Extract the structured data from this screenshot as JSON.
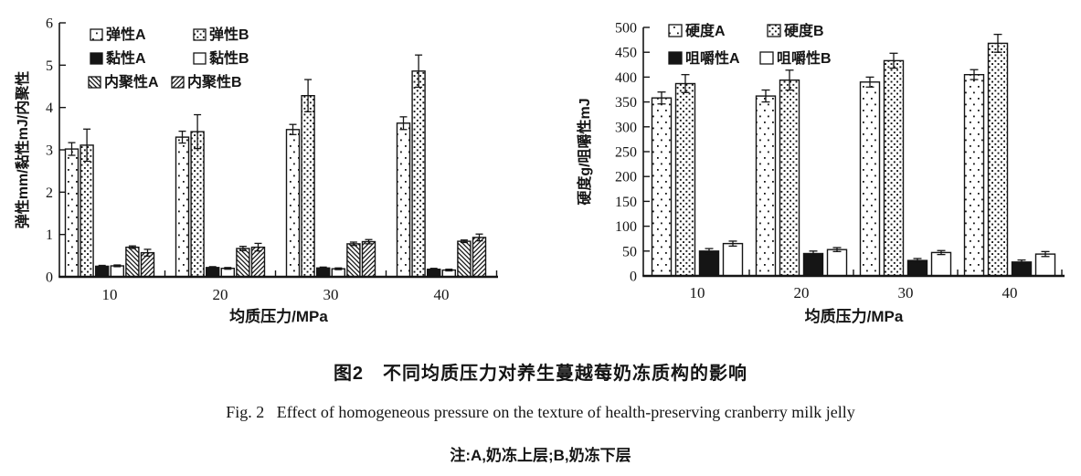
{
  "colors": {
    "ink": "#151515",
    "background": "#ffffff"
  },
  "figure": {
    "caption_zh": "图2　不同均质压力对养生蔓越莓奶冻质构的影响",
    "caption_en": "Fig. 2   Effect of homogeneous pressure on the texture of health-preserving cranberry milk jelly",
    "note": "注:A,奶冻上层;B,奶冻下层"
  },
  "chart_data": [
    {
      "type": "bar",
      "title": "",
      "xlabel": "均质压力/MPa",
      "ylabel": "弹性mm/黏性mJ/内聚性",
      "ylim": [
        0,
        6
      ],
      "ytick_step": 1,
      "grid": false,
      "legend_position": "top-left-inside",
      "error_bars": true,
      "categories": [
        "10",
        "20",
        "30",
        "40"
      ],
      "series": [
        {
          "name": "弹性A",
          "pattern": "sparse-dots",
          "values": [
            3.02,
            3.3,
            3.48,
            3.63
          ],
          "errors": [
            0.15,
            0.14,
            0.12,
            0.15
          ]
        },
        {
          "name": "弹性B",
          "pattern": "dense-dots",
          "values": [
            3.11,
            3.43,
            4.28,
            4.86
          ],
          "errors": [
            0.38,
            0.4,
            0.38,
            0.38
          ]
        },
        {
          "name": "黏性A",
          "pattern": "solid",
          "values": [
            0.25,
            0.22,
            0.21,
            0.18
          ],
          "errors": [
            0.02,
            0.02,
            0.02,
            0.02
          ]
        },
        {
          "name": "黏性B",
          "pattern": "open",
          "values": [
            0.26,
            0.2,
            0.19,
            0.16
          ],
          "errors": [
            0.02,
            0.02,
            0.02,
            0.02
          ]
        },
        {
          "name": "内聚性A",
          "pattern": "hatch-back",
          "values": [
            0.7,
            0.67,
            0.78,
            0.84
          ],
          "errors": [
            0.03,
            0.05,
            0.04,
            0.03
          ]
        },
        {
          "name": "内聚性B",
          "pattern": "hatch-fwd",
          "values": [
            0.57,
            0.7,
            0.83,
            0.93
          ],
          "errors": [
            0.08,
            0.09,
            0.05,
            0.08
          ]
        }
      ]
    },
    {
      "type": "bar",
      "title": "",
      "xlabel": "均质压力/MPa",
      "ylabel": "硬度g/咀嚼性mJ",
      "ylim": [
        0,
        500
      ],
      "ytick_step": 50,
      "grid": false,
      "legend_position": "top-left-inside",
      "error_bars": true,
      "categories": [
        "10",
        "20",
        "30",
        "40"
      ],
      "series": [
        {
          "name": "硬度A",
          "pattern": "sparse-dots",
          "values": [
            358,
            362,
            390,
            405
          ],
          "errors": [
            12,
            12,
            10,
            10
          ]
        },
        {
          "name": "硬度B",
          "pattern": "dense-dots",
          "values": [
            387,
            394,
            433,
            468
          ],
          "errors": [
            18,
            20,
            15,
            18
          ]
        },
        {
          "name": "咀嚼性A",
          "pattern": "solid",
          "values": [
            50,
            45,
            31,
            28
          ],
          "errors": [
            5,
            5,
            4,
            4
          ]
        },
        {
          "name": "咀嚼性B",
          "pattern": "open",
          "values": [
            65,
            53,
            47,
            44
          ],
          "errors": [
            5,
            4,
            4,
            5
          ]
        }
      ]
    }
  ]
}
